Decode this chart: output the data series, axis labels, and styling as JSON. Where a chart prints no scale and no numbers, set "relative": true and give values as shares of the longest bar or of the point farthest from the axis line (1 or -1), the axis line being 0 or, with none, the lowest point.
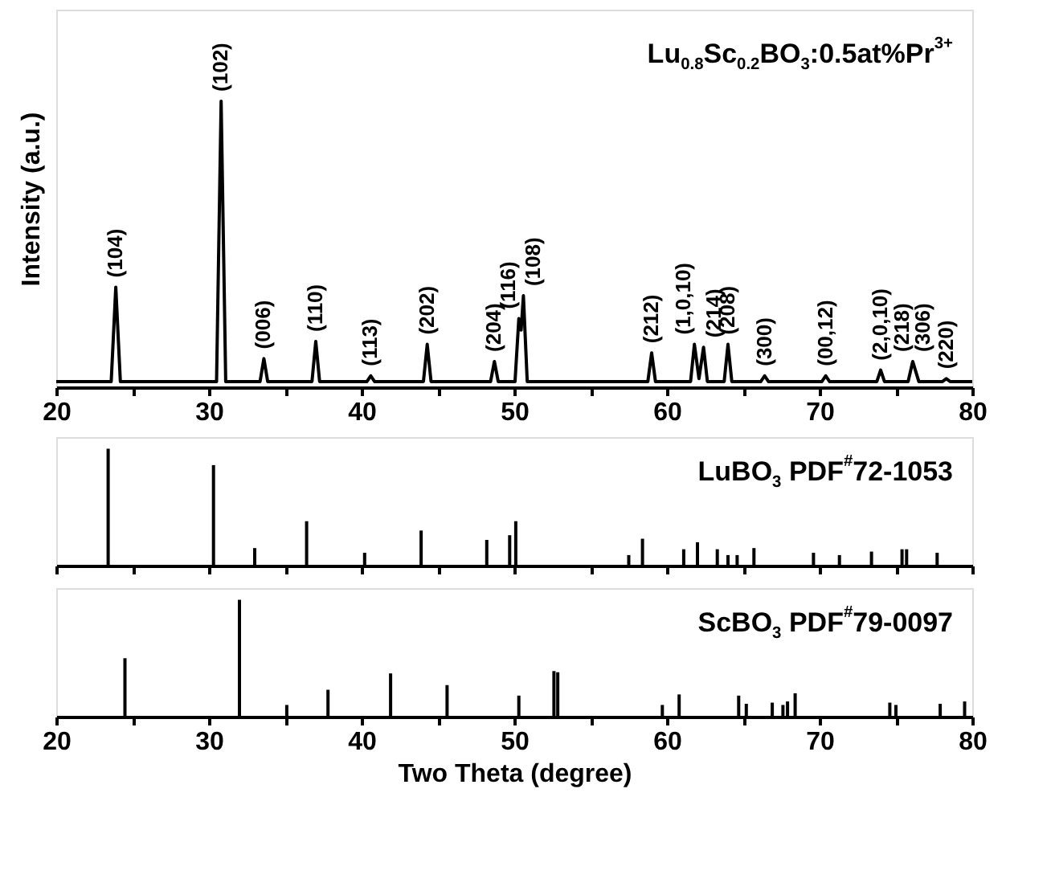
{
  "chart_data": [
    {
      "type": "line",
      "relative": true,
      "ylabel": "Intensity (a.u.)",
      "xlim": [
        20,
        80
      ],
      "xticks": [
        20,
        {
          "value": 25,
          "label": null
        },
        30,
        {
          "value": 35,
          "label": null
        },
        40,
        {
          "value": 45,
          "label": null
        },
        50,
        {
          "value": 55,
          "label": null
        },
        60,
        {
          "value": 65,
          "label": null
        },
        70,
        {
          "value": 75,
          "label": null
        },
        80
      ],
      "tick_labels": "x",
      "grid": false,
      "series": [
        {
          "color": "#000000",
          "x": [
            20,
            23.6,
            23.9,
            24.2,
            30.5,
            30.8,
            31.1,
            33.35,
            33.6,
            33.85,
            36.75,
            37.0,
            37.25,
            40.35,
            40.6,
            40.85,
            44.05,
            44.3,
            44.55,
            48.45,
            48.7,
            48.95,
            50.05,
            50.3,
            50.45,
            50.6,
            50.85,
            58.75,
            59.0,
            59.25,
            61.55,
            61.8,
            62.1,
            62.4,
            62.65,
            63.75,
            64.0,
            64.25,
            66.15,
            66.4,
            66.65,
            70.15,
            70.4,
            70.65,
            73.75,
            74.0,
            74.25,
            75.8,
            76.1,
            76.5,
            78.05,
            78.3,
            78.55,
            80
          ],
          "values": [
            0.02,
            0.02,
            0.35,
            0.02,
            0.02,
            1.0,
            0.02,
            0.02,
            0.1,
            0.02,
            0.02,
            0.16,
            0.02,
            0.02,
            0.04,
            0.02,
            0.02,
            0.15,
            0.02,
            0.02,
            0.09,
            0.02,
            0.02,
            0.24,
            0.2,
            0.32,
            0.02,
            0.02,
            0.12,
            0.02,
            0.02,
            0.15,
            0.03,
            0.14,
            0.02,
            0.02,
            0.15,
            0.02,
            0.02,
            0.04,
            0.02,
            0.02,
            0.04,
            0.02,
            0.02,
            0.06,
            0.02,
            0.02,
            0.09,
            0.02,
            0.02,
            0.03,
            0.02,
            0.02
          ]
        }
      ],
      "annotations": [
        "Lu$_{0.8}$Sc$_{0.2}$BO$_{3}$:0.5at%Pr$^{3+}$",
        {
          "text": "(104)",
          "x": 23.9,
          "y": 0.35
        },
        {
          "text": "(102)",
          "x": 30.8,
          "y": 1.0
        },
        {
          "text": "(006)",
          "x": 33.6,
          "y": 0.1
        },
        {
          "text": "(110)",
          "x": 37.0,
          "y": 0.16
        },
        {
          "text": "(113)",
          "x": 40.6,
          "y": 0.04
        },
        {
          "text": "(202)",
          "x": 44.3,
          "y": 0.15
        },
        {
          "text": "(204)",
          "x": 48.7,
          "y": 0.09
        },
        {
          "text": "(116)",
          "x": 50.3,
          "y": 0.24
        },
        {
          "text": "(108)",
          "x": 50.6,
          "y": 0.32
        },
        {
          "text": "(212)",
          "x": 59.0,
          "y": 0.12
        },
        {
          "text": "(1,0,10)",
          "x": 61.8,
          "y": 0.15
        },
        {
          "text": "(214)",
          "x": 62.4,
          "y": 0.14
        },
        {
          "text": "(208)",
          "x": 64.0,
          "y": 0.15
        },
        {
          "text": "(300)",
          "x": 66.4,
          "y": 0.04
        },
        {
          "text": "(00,12)",
          "x": 70.4,
          "y": 0.04
        },
        {
          "text": "(2,0,10)",
          "x": 74.0,
          "y": 0.06
        },
        {
          "text": "(218)",
          "x": 76.1,
          "y": 0.09
        },
        {
          "text": "(306)",
          "x": 76.1,
          "y": 0.09
        },
        {
          "text": "(220)",
          "x": 78.3,
          "y": 0.03
        }
      ]
    },
    {
      "type": "bar",
      "relative": true,
      "xlim": [
        20,
        80
      ],
      "xticks": [
        20,
        {
          "value": 25,
          "label": null
        },
        30,
        {
          "value": 35,
          "label": null
        },
        40,
        {
          "value": 45,
          "label": null
        },
        50,
        {
          "value": 55,
          "label": null
        },
        60,
        {
          "value": 65,
          "label": null
        },
        70,
        {
          "value": 75,
          "label": null
        },
        80
      ],
      "tick_labels": false,
      "grid": false,
      "x": [
        23.4,
        30.3,
        33.0,
        36.4,
        40.2,
        43.9,
        48.2,
        49.7,
        50.1,
        57.5,
        58.4,
        61.1,
        62.0,
        63.3,
        64.0,
        64.6,
        65.7,
        69.6,
        71.3,
        73.4,
        75.4,
        75.7,
        77.7
      ],
      "values": [
        1.0,
        0.86,
        0.15,
        0.38,
        0.11,
        0.3,
        0.22,
        0.26,
        0.38,
        0.09,
        0.23,
        0.14,
        0.2,
        0.14,
        0.09,
        0.09,
        0.15,
        0.11,
        0.09,
        0.12,
        0.14,
        0.14,
        0.11
      ],
      "color": "#000000",
      "annotations": [
        "LuBO$_{3}$ PDF$^{#}$72-1053"
      ]
    },
    {
      "type": "bar",
      "relative": true,
      "xlabel": "Two Theta (degree)",
      "xlim": [
        20,
        80
      ],
      "xticks": [
        20,
        {
          "value": 25,
          "label": null
        },
        30,
        {
          "value": 35,
          "label": null
        },
        40,
        {
          "value": 45,
          "label": null
        },
        50,
        {
          "value": 55,
          "label": null
        },
        60,
        {
          "value": 65,
          "label": null
        },
        70,
        {
          "value": 75,
          "label": null
        },
        80
      ],
      "tick_labels": "x",
      "grid": false,
      "x": [
        24.5,
        32.0,
        35.1,
        37.8,
        41.9,
        45.6,
        50.3,
        52.6,
        52.85,
        59.7,
        60.8,
        64.7,
        65.2,
        66.9,
        67.6,
        67.9,
        68.4,
        74.6,
        75.0,
        77.9,
        79.5
      ],
      "values": [
        0.5,
        1.0,
        0.1,
        0.23,
        0.37,
        0.27,
        0.18,
        0.39,
        0.38,
        0.1,
        0.19,
        0.18,
        0.11,
        0.12,
        0.1,
        0.13,
        0.2,
        0.12,
        0.1,
        0.11,
        0.13
      ],
      "color": "#000000",
      "annotations": [
        "ScBO$_{3}$ PDF$^{#}$79-0097"
      ]
    }
  ]
}
